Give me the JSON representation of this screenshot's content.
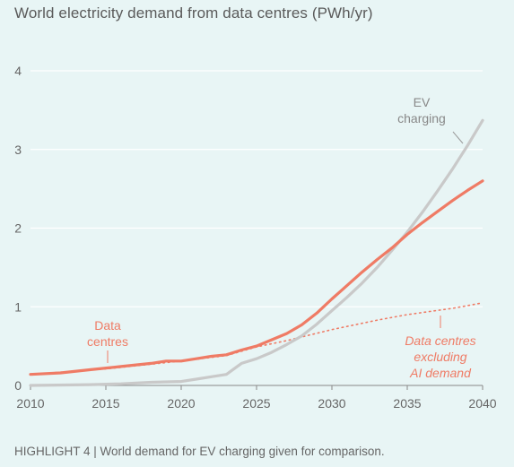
{
  "title": "World electricity demand from data centres (PWh/yr)",
  "footer": "HIGHLIGHT 4 | World demand for EV charging given for comparison.",
  "colors": {
    "background": "#e8f5f5",
    "data_centres": "#ef7b65",
    "ev_charging": "#c9c9c9",
    "data_centres_excl_ai": "#ef7b65",
    "gridline": "#ffffff",
    "axis": "#888888"
  },
  "annotations": {
    "ev": [
      "EV",
      "charging"
    ],
    "dc": [
      "Data",
      "centres"
    ],
    "dc_ex": [
      "Data centres",
      "excluding",
      "AI demand"
    ]
  },
  "chart_data": {
    "type": "line",
    "title": "World electricity demand from data centres (PWh/yr)",
    "xlabel": "",
    "ylabel": "",
    "xlim": [
      2010,
      2040
    ],
    "ylim": [
      0,
      4
    ],
    "x_ticks": [
      2010,
      2015,
      2020,
      2025,
      2030,
      2035,
      2040
    ],
    "y_ticks": [
      0,
      1,
      2,
      3,
      4
    ],
    "grid": "horizontal",
    "legend": "none (inline labels)",
    "series": [
      {
        "name": "Data centres",
        "style": "solid",
        "points": [
          [
            2010,
            0.14
          ],
          [
            2012,
            0.16
          ],
          [
            2014,
            0.2
          ],
          [
            2016,
            0.24
          ],
          [
            2018,
            0.28
          ],
          [
            2019,
            0.31
          ],
          [
            2020,
            0.31
          ],
          [
            2021,
            0.34
          ],
          [
            2022,
            0.37
          ],
          [
            2023,
            0.39
          ],
          [
            2024,
            0.45
          ],
          [
            2025,
            0.5
          ],
          [
            2026,
            0.58
          ],
          [
            2027,
            0.66
          ],
          [
            2028,
            0.77
          ],
          [
            2029,
            0.92
          ],
          [
            2030,
            1.1
          ],
          [
            2031,
            1.27
          ],
          [
            2032,
            1.44
          ],
          [
            2033,
            1.6
          ],
          [
            2034,
            1.75
          ],
          [
            2035,
            1.92
          ],
          [
            2036,
            2.07
          ],
          [
            2037,
            2.21
          ],
          [
            2038,
            2.35
          ],
          [
            2039,
            2.48
          ],
          [
            2040,
            2.6
          ]
        ]
      },
      {
        "name": "EV charging",
        "style": "solid",
        "points": [
          [
            2010,
            0.0
          ],
          [
            2014,
            0.01
          ],
          [
            2016,
            0.02
          ],
          [
            2018,
            0.04
          ],
          [
            2020,
            0.05
          ],
          [
            2021,
            0.08
          ],
          [
            2022,
            0.11
          ],
          [
            2023,
            0.14
          ],
          [
            2024,
            0.28
          ],
          [
            2025,
            0.34
          ],
          [
            2026,
            0.42
          ],
          [
            2027,
            0.52
          ],
          [
            2028,
            0.63
          ],
          [
            2029,
            0.78
          ],
          [
            2030,
            0.95
          ],
          [
            2031,
            1.12
          ],
          [
            2032,
            1.3
          ],
          [
            2033,
            1.5
          ],
          [
            2034,
            1.72
          ],
          [
            2035,
            1.95
          ],
          [
            2036,
            2.2
          ],
          [
            2037,
            2.47
          ],
          [
            2038,
            2.75
          ],
          [
            2039,
            3.05
          ],
          [
            2040,
            3.37
          ]
        ]
      },
      {
        "name": "Data centres excluding AI demand",
        "style": "dotted",
        "points": [
          [
            2010,
            0.14
          ],
          [
            2015,
            0.21
          ],
          [
            2020,
            0.31
          ],
          [
            2023,
            0.38
          ],
          [
            2025,
            0.49
          ],
          [
            2027,
            0.57
          ],
          [
            2030,
            0.71
          ],
          [
            2033,
            0.83
          ],
          [
            2035,
            0.9
          ],
          [
            2038,
            0.98
          ],
          [
            2040,
            1.05
          ]
        ]
      }
    ]
  }
}
